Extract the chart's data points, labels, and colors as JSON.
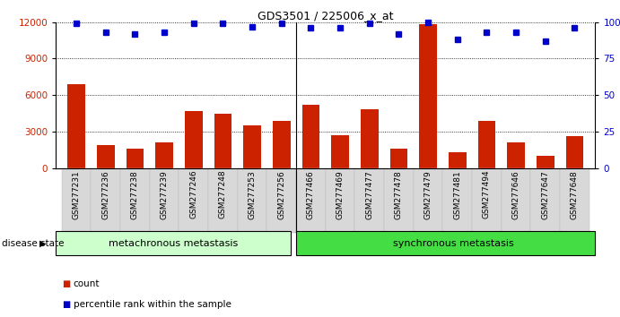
{
  "title": "GDS3501 / 225006_x_at",
  "samples": [
    "GSM277231",
    "GSM277236",
    "GSM277238",
    "GSM277239",
    "GSM277246",
    "GSM277248",
    "GSM277253",
    "GSM277256",
    "GSM277466",
    "GSM277469",
    "GSM277477",
    "GSM277478",
    "GSM277479",
    "GSM277481",
    "GSM277494",
    "GSM277646",
    "GSM277647",
    "GSM277648"
  ],
  "counts": [
    6900,
    1900,
    1600,
    2100,
    4700,
    4500,
    3500,
    3900,
    5200,
    2700,
    4800,
    1600,
    11800,
    1300,
    3900,
    2100,
    1000,
    2600
  ],
  "percentiles": [
    99,
    93,
    92,
    93,
    99,
    99,
    97,
    99,
    96,
    96,
    99,
    92,
    100,
    88,
    93,
    93,
    87,
    96
  ],
  "group1_label": "metachronous metastasis",
  "group1_count": 8,
  "group1_color": "#ccffcc",
  "group2_label": "synchronous metastasis",
  "group2_count": 10,
  "group2_color": "#44dd44",
  "bar_color": "#cc2200",
  "dot_color": "#0000cc",
  "ylim_left": [
    0,
    12000
  ],
  "yticks_left": [
    0,
    3000,
    6000,
    9000,
    12000
  ],
  "ylim_right": [
    0,
    100
  ],
  "yticks_right": [
    0,
    25,
    50,
    75,
    100
  ],
  "ytick_labels_right": [
    "0",
    "25",
    "50",
    "75",
    "100%"
  ],
  "background_color": "#ffffff",
  "disease_state_label": "disease state",
  "legend_count_label": "count",
  "legend_percentile_label": "percentile rank within the sample"
}
